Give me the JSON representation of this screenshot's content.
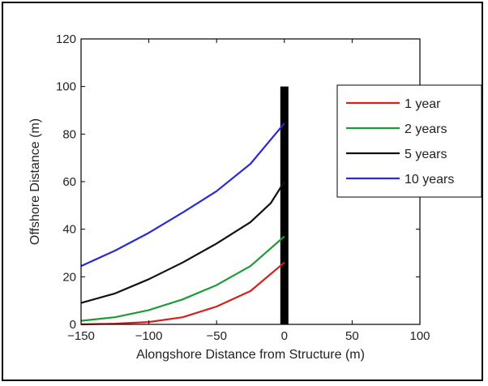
{
  "chart_data": {
    "type": "line",
    "title": "",
    "xlabel": "Alongshore Distance from Structure (m)",
    "ylabel": "Offshore Distance (m)",
    "xlim": [
      -150,
      100
    ],
    "ylim": [
      0,
      120
    ],
    "xticks": [
      -150,
      -100,
      -50,
      0,
      50,
      100
    ],
    "yticks": [
      0,
      20,
      40,
      60,
      80,
      100,
      120
    ],
    "xtick_labels": [
      "−150",
      "−100",
      "−50",
      "0",
      "50",
      "100"
    ],
    "ytick_labels": [
      "0",
      "20",
      "40",
      "60",
      "80",
      "100",
      "120"
    ],
    "grid": false,
    "legend_position": "top-right",
    "structure": {
      "x": 0,
      "y_from": 0,
      "y_to": 100,
      "color": "#000000"
    },
    "series": [
      {
        "name": "1 year",
        "color": "#d62020",
        "x": [
          -150,
          -125,
          -100,
          -75,
          -50,
          -25,
          0
        ],
        "y": [
          0,
          0.3,
          1,
          3,
          7.5,
          14,
          26
        ]
      },
      {
        "name": "2 years",
        "color": "#1f9a3a",
        "x": [
          -150,
          -125,
          -100,
          -75,
          -50,
          -25,
          0
        ],
        "y": [
          1.5,
          3,
          6,
          10.5,
          16.5,
          24.5,
          37
        ]
      },
      {
        "name": "5 years",
        "color": "#111111",
        "x": [
          -150,
          -125,
          -100,
          -75,
          -50,
          -25,
          -10,
          0
        ],
        "y": [
          9,
          13,
          19,
          26,
          34,
          43,
          51,
          60
        ]
      },
      {
        "name": "10 years",
        "color": "#2a2ad8",
        "x": [
          -150,
          -125,
          -100,
          -75,
          -50,
          -25,
          0
        ],
        "y": [
          24.5,
          31,
          38.5,
          47,
          56,
          67.5,
          84.5
        ]
      }
    ]
  }
}
